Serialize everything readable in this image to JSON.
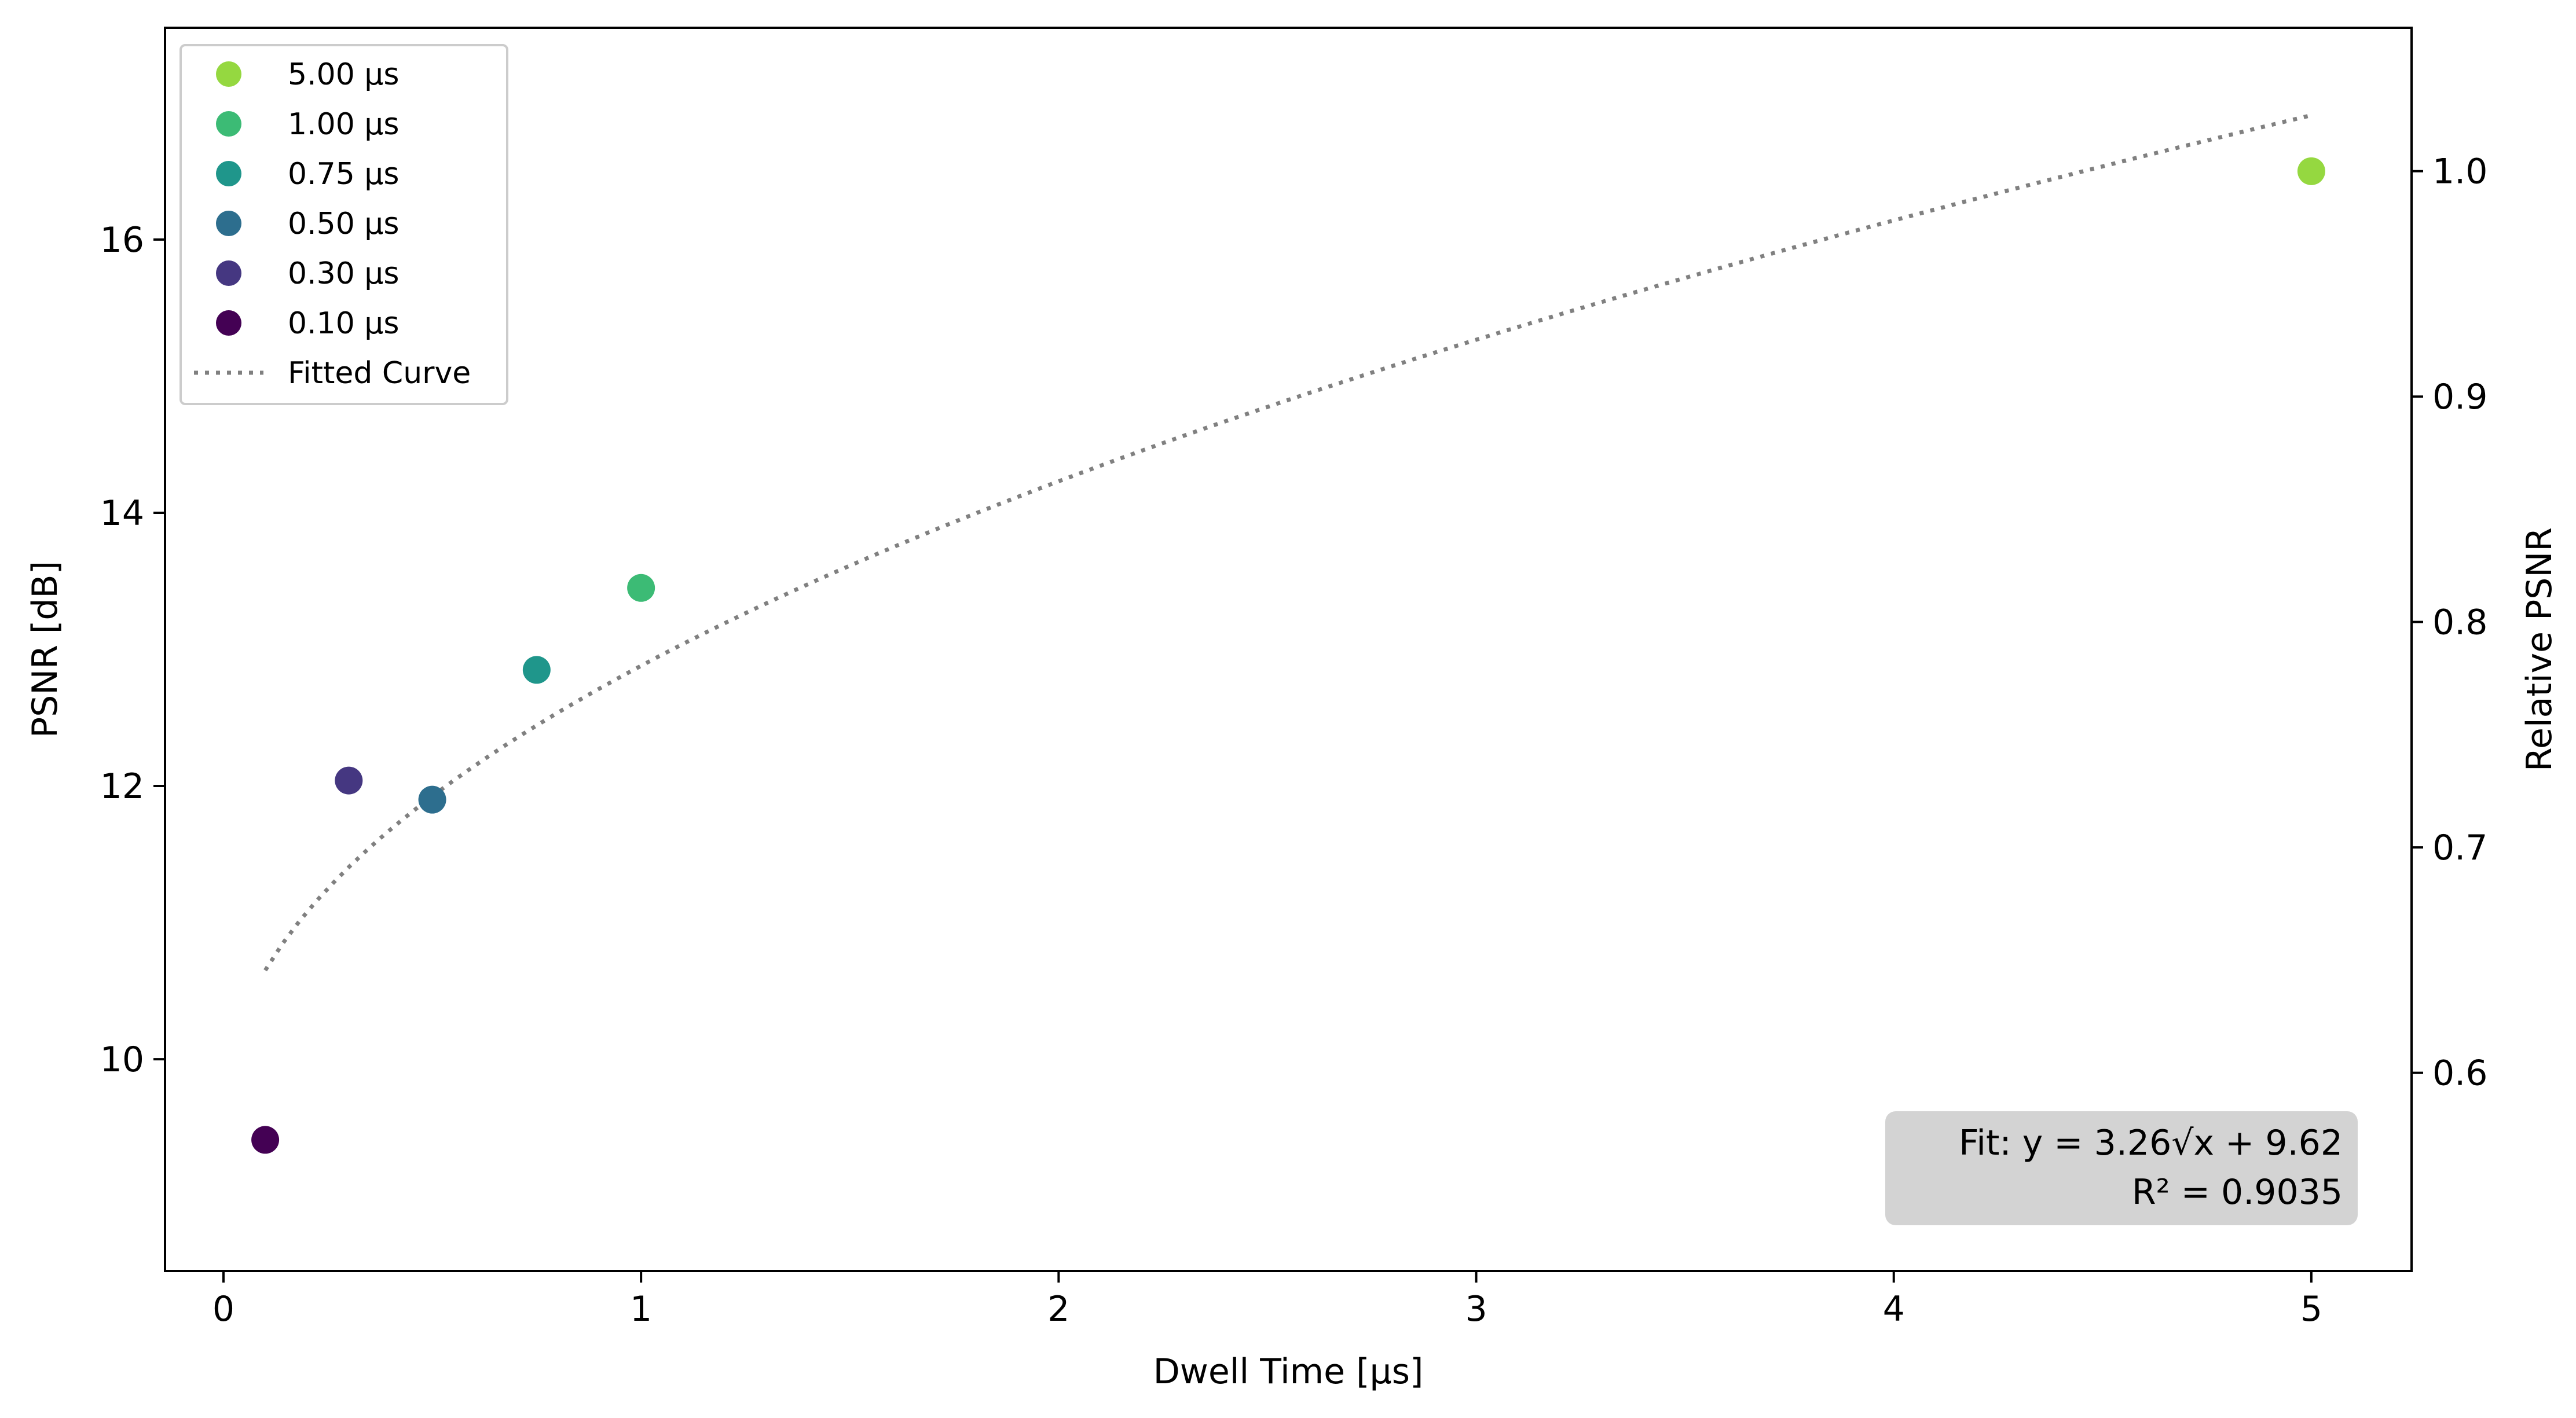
{
  "chart_data": {
    "type": "scatter",
    "xlabel": "Dwell Time [µs]",
    "ylabel": "PSNR [dB]",
    "ylabel_right": "Relative PSNR",
    "xlim": [
      -0.14,
      5.24
    ],
    "ylim": [
      8.45,
      17.55
    ],
    "ylim_right": [
      0.5121,
      1.0636
    ],
    "x_ticks": [
      0,
      1,
      2,
      3,
      4,
      5
    ],
    "y_ticks": [
      10,
      12,
      14,
      16
    ],
    "y_ticks_right": [
      0.6,
      0.7,
      0.8,
      0.9,
      1.0
    ],
    "x_tick_labels": [
      "0",
      "1",
      "2",
      "3",
      "4",
      "5"
    ],
    "y_tick_labels": [
      "10",
      "12",
      "14",
      "16"
    ],
    "y_tick_labels_right": [
      "0.6",
      "0.7",
      "0.8",
      "0.9",
      "1.0"
    ],
    "grid": false,
    "legend_position": "top-left",
    "series": [
      {
        "name": "5.00 µs",
        "color": "#95d840",
        "points": [
          {
            "x": 5.0,
            "y": 16.5
          }
        ]
      },
      {
        "name": "1.00 µs",
        "color": "#3cbb75",
        "points": [
          {
            "x": 1.0,
            "y": 13.45
          }
        ]
      },
      {
        "name": "0.75 µs",
        "color": "#1f968b",
        "points": [
          {
            "x": 0.75,
            "y": 12.85
          }
        ]
      },
      {
        "name": "0.50 µs",
        "color": "#2d6e8e",
        "points": [
          {
            "x": 0.5,
            "y": 11.9
          }
        ]
      },
      {
        "name": "0.30 µs",
        "color": "#453781",
        "points": [
          {
            "x": 0.3,
            "y": 12.04
          }
        ]
      },
      {
        "name": "0.10 µs",
        "color": "#440154",
        "points": [
          {
            "x": 0.1,
            "y": 9.41
          }
        ]
      }
    ],
    "fit": {
      "name": "Fitted Curve",
      "color": "#808080",
      "a": 3.26,
      "b": 9.62,
      "x_range": [
        0.1,
        5.0
      ]
    },
    "annotation": {
      "line1": "Fit: y = 3.26√x + 9.62",
      "line2": "R² = 0.9035",
      "position": "bottom-right"
    }
  }
}
